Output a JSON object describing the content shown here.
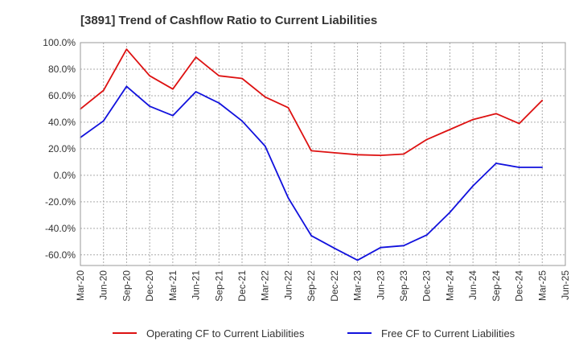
{
  "chart_data": {
    "type": "line",
    "title": "[3891]  Trend of Cashflow Ratio to Current Liabilities",
    "xlabel": "",
    "ylabel": "",
    "ylim": [
      -68,
      100
    ],
    "y_ticks": [
      "100.0%",
      "80.0%",
      "60.0%",
      "40.0%",
      "20.0%",
      "0.0%",
      "-20.0%",
      "-40.0%",
      "-60.0%"
    ],
    "y_tick_values": [
      100,
      80,
      60,
      40,
      20,
      0,
      -20,
      -40,
      -60
    ],
    "x_ticks": [
      "Mar-20",
      "Jun-20",
      "Sep-20",
      "Dec-20",
      "Mar-21",
      "Jun-21",
      "Sep-21",
      "Dec-21",
      "Mar-22",
      "Jun-22",
      "Sep-22",
      "Dec-22",
      "Mar-23",
      "Jun-23",
      "Sep-23",
      "Dec-23",
      "Mar-24",
      "Jun-24",
      "Sep-24",
      "Dec-24",
      "Mar-25",
      "Jun-25"
    ],
    "grid": true,
    "legend_position": "bottom",
    "series": [
      {
        "name": "Operating CF to Current Liabilities",
        "color": "#dd1111",
        "x": [
          "Mar-20",
          "Jun-20",
          "Sep-20",
          "Dec-20",
          "Mar-21",
          "Jun-21",
          "Sep-21",
          "Dec-21",
          "Mar-22",
          "Jun-22",
          "Sep-22",
          "Dec-22",
          "Mar-23",
          "Jun-23",
          "Sep-23",
          "Dec-23",
          "Mar-24",
          "Jun-24",
          "Sep-24",
          "Dec-24",
          "Mar-25"
        ],
        "values": [
          50,
          64,
          95,
          75,
          65,
          89,
          75,
          73,
          59,
          51,
          18.5,
          17,
          15.5,
          15,
          16,
          27,
          34.5,
          42,
          46.5,
          39,
          56.5
        ]
      },
      {
        "name": "Free CF to Current Liabilities",
        "color": "#1111dd",
        "x": [
          "Mar-20",
          "Jun-20",
          "Sep-20",
          "Dec-20",
          "Mar-21",
          "Jun-21",
          "Sep-21",
          "Dec-21",
          "Mar-22",
          "Jun-22",
          "Sep-22",
          "Dec-22",
          "Mar-23",
          "Jun-23",
          "Sep-23",
          "Dec-23",
          "Mar-24",
          "Jun-24",
          "Sep-24",
          "Dec-24",
          "Mar-25"
        ],
        "values": [
          28.5,
          41,
          67,
          52,
          45,
          63,
          54.5,
          41,
          22,
          -17,
          -45.5,
          -55,
          -64,
          -54.5,
          -53,
          -45,
          -28,
          -8,
          9,
          6,
          6
        ]
      }
    ]
  }
}
